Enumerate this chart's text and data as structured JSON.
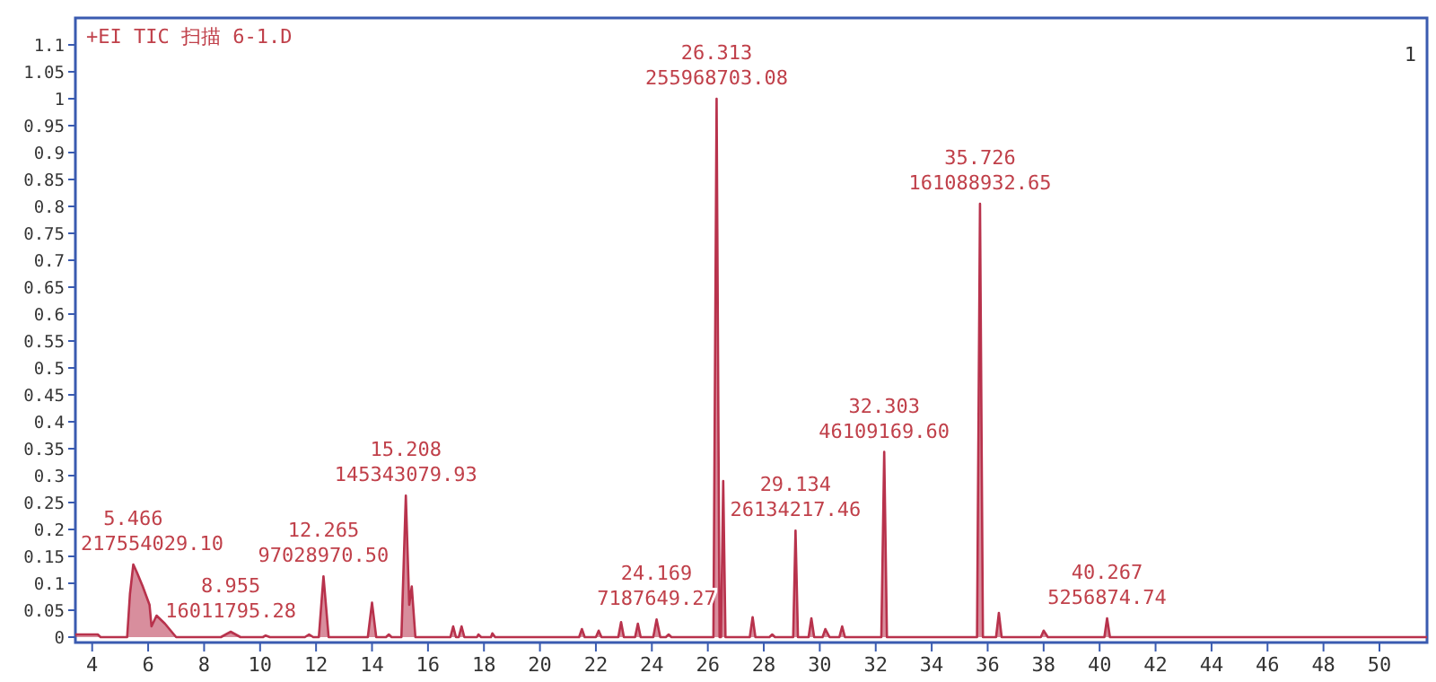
{
  "chart_data": {
    "type": "area",
    "title": "+EI TIC 扫描 6-1.D",
    "color": "#b8324c",
    "x": [
      3.4,
      4.2,
      4.3,
      5.25,
      5.35,
      5.47,
      5.6,
      5.8,
      6.05,
      6.12,
      6.3,
      6.6,
      7.0,
      8.6,
      8.95,
      9.3,
      10.1,
      10.2,
      10.35,
      11.6,
      11.75,
      11.9,
      12.1,
      12.265,
      12.45,
      13.85,
      14.0,
      14.15,
      14.5,
      14.6,
      14.7,
      15.05,
      15.208,
      15.33,
      15.42,
      15.55,
      16.8,
      16.9,
      17.0,
      17.1,
      17.2,
      17.3,
      17.75,
      17.8,
      17.9,
      18.25,
      18.3,
      18.4,
      21.4,
      21.5,
      21.6,
      22.0,
      22.1,
      22.2,
      22.8,
      22.9,
      23.0,
      23.4,
      23.5,
      23.6,
      24.05,
      24.169,
      24.3,
      24.5,
      24.6,
      24.7,
      26.2,
      26.313,
      26.42,
      26.47,
      26.55,
      26.63,
      27.5,
      27.6,
      27.7,
      28.2,
      28.3,
      28.4,
      29.05,
      29.134,
      29.22,
      29.6,
      29.7,
      29.8,
      30.1,
      30.2,
      30.35,
      30.7,
      30.8,
      30.9,
      32.2,
      32.303,
      32.4,
      35.62,
      35.726,
      35.83,
      36.3,
      36.4,
      36.5,
      37.9,
      38.0,
      38.15,
      40.17,
      40.267,
      40.37,
      51.7
    ],
    "values": [
      0.005,
      0.005,
      0,
      0,
      0.08,
      0.135,
      0.12,
      0.095,
      0.06,
      0.02,
      0.04,
      0.025,
      0,
      0,
      0.01,
      0,
      0,
      0.003,
      0,
      0,
      0.005,
      0,
      0,
      0.113,
      0,
      0,
      0.064,
      0,
      0,
      0.005,
      0,
      0,
      0.263,
      0.06,
      0.094,
      0,
      0,
      0.02,
      0,
      0,
      0.02,
      0,
      0,
      0.005,
      0,
      0,
      0.007,
      0,
      0,
      0.015,
      0,
      0,
      0.012,
      0,
      0,
      0.028,
      0,
      0,
      0.025,
      0,
      0,
      0.033,
      0,
      0,
      0.005,
      0,
      0,
      1.0,
      0,
      0,
      0.29,
      0,
      0,
      0.037,
      0,
      0,
      0.005,
      0,
      0,
      0.198,
      0,
      0,
      0.035,
      0,
      0,
      0.015,
      0,
      0,
      0.02,
      0,
      0,
      0.344,
      0,
      0,
      0.805,
      0,
      0,
      0.045,
      0,
      0,
      0.012,
      0,
      0,
      0.035,
      0,
      0
    ],
    "xlim": [
      3.4,
      51.7
    ],
    "ylim": [
      -0.01,
      1.15
    ],
    "xticks": [
      4,
      6,
      8,
      10,
      12,
      14,
      16,
      18,
      20,
      22,
      24,
      26,
      28,
      30,
      32,
      34,
      36,
      38,
      40,
      42,
      44,
      46,
      48,
      50
    ],
    "yticks": [
      0,
      0.05,
      0.1,
      0.15,
      0.2,
      0.25,
      0.3,
      0.35,
      0.4,
      0.45,
      0.5,
      0.55,
      0.6,
      0.65,
      0.7,
      0.75,
      0.8,
      0.85,
      0.9,
      0.95,
      1,
      1.05,
      1.1
    ],
    "annotations": [
      {
        "text": "5.466\n217554029.10",
        "x": 5.466,
        "y": 0.135
      },
      {
        "text": "8.955\n16011795.28",
        "x": 8.955,
        "y": 0.01
      },
      {
        "text": "12.265\n97028970.50",
        "x": 12.265,
        "y": 0.113
      },
      {
        "text": "15.208\n145343079.93",
        "x": 15.208,
        "y": 0.263
      },
      {
        "text": "24.169\n7187649.27",
        "x": 24.169,
        "y": 0.033
      },
      {
        "text": "26.313\n255968703.08",
        "x": 26.313,
        "y": 1.0
      },
      {
        "text": "29.134\n26134217.46",
        "x": 29.134,
        "y": 0.198
      },
      {
        "text": "32.303\n46109169.60",
        "x": 32.303,
        "y": 0.344
      },
      {
        "text": "35.726\n161088932.65",
        "x": 35.726,
        "y": 0.805
      },
      {
        "text": "40.267\n5256874.74",
        "x": 40.267,
        "y": 0.035
      },
      "1"
    ]
  }
}
